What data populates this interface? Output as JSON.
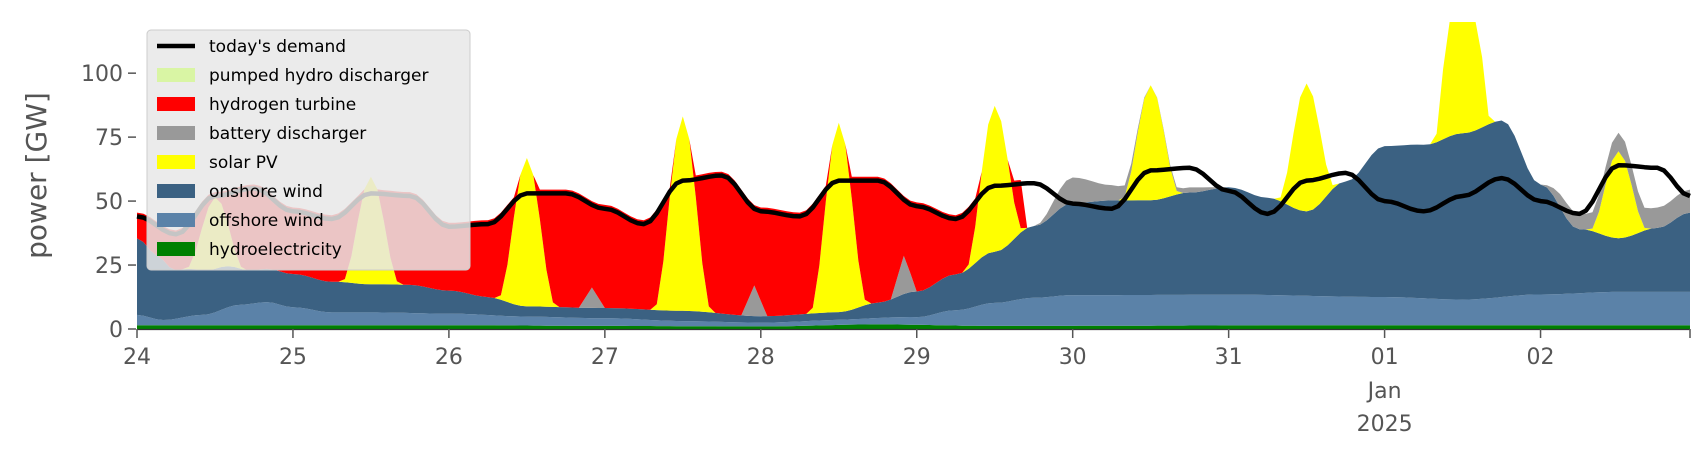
{
  "chart_data": {
    "type": "area",
    "ylabel": "power [GW]",
    "xlabel": "",
    "title": "",
    "ylim": [
      0,
      120
    ],
    "xlim": [
      "2024-12-24T00:00",
      "2025-01-02T23:00"
    ],
    "grid": false,
    "legend_position": "top-left",
    "y_ticks": [
      0,
      25,
      50,
      75,
      100
    ],
    "x_ticks": [
      {
        "date": "2024-12-24",
        "label": "24"
      },
      {
        "date": "2024-12-25",
        "label": "25"
      },
      {
        "date": "2024-12-26",
        "label": "26"
      },
      {
        "date": "2024-12-27",
        "label": "27"
      },
      {
        "date": "2024-12-28",
        "label": "28"
      },
      {
        "date": "2024-12-29",
        "label": "29"
      },
      {
        "date": "2024-12-30",
        "label": "30"
      },
      {
        "date": "2024-12-31",
        "label": "31"
      },
      {
        "date": "2025-01-01",
        "label": "01",
        "sub": [
          "Jan",
          "2025"
        ]
      },
      {
        "date": "2025-01-02",
        "label": "02"
      }
    ],
    "legend": [
      {
        "name": "today's demand",
        "color": "#000000",
        "kind": "line"
      },
      {
        "name": "pumped hydro discharger",
        "color": "#d9f5a4",
        "kind": "patch"
      },
      {
        "name": "hydrogen turbine",
        "color": "#ff0000",
        "kind": "patch"
      },
      {
        "name": "battery discharger",
        "color": "#999999",
        "kind": "patch"
      },
      {
        "name": "solar PV",
        "color": "#ffff00",
        "kind": "patch"
      },
      {
        "name": "onshore wind",
        "color": "#3b6182",
        "kind": "patch"
      },
      {
        "name": "offshore wind",
        "color": "#5b82a8",
        "kind": "patch"
      },
      {
        "name": "hydroelectricity",
        "color": "#008000",
        "kind": "patch"
      }
    ],
    "stack_order": [
      "hydroelectricity",
      "offshore wind",
      "onshore wind",
      "solar PV",
      "battery discharger",
      "hydrogen turbine",
      "pumped hydro discharger"
    ],
    "series": {
      "hydroelectricity": {
        "color": "#008000",
        "points": [
          [
            "2024-12-24T00:00",
            1.5
          ],
          [
            "2024-12-26T00:00",
            1.5
          ],
          [
            "2024-12-27T00:00",
            1.2
          ],
          [
            "2024-12-28T00:00",
            1.0
          ],
          [
            "2024-12-28T18:00",
            1.8
          ],
          [
            "2024-12-29T12:00",
            1.2
          ],
          [
            "2025-01-01T00:00",
            1.5
          ],
          [
            "2025-01-02T23:00",
            1.5
          ]
        ]
      },
      "offshore wind": {
        "color": "#5b82a8",
        "points": [
          [
            "2024-12-24T00:00",
            4
          ],
          [
            "2024-12-24T04:00",
            2
          ],
          [
            "2024-12-24T10:00",
            4
          ],
          [
            "2024-12-24T16:00",
            8
          ],
          [
            "2024-12-24T20:00",
            9
          ],
          [
            "2024-12-25T00:00",
            7
          ],
          [
            "2024-12-25T06:00",
            5
          ],
          [
            "2024-12-25T12:00",
            5
          ],
          [
            "2024-12-26T00:00",
            4.5
          ],
          [
            "2024-12-26T12:00",
            3.5
          ],
          [
            "2024-12-27T00:00",
            3
          ],
          [
            "2024-12-27T12:00",
            2
          ],
          [
            "2024-12-28T00:00",
            1.5
          ],
          [
            "2024-12-28T12:00",
            2
          ],
          [
            "2024-12-29T00:00",
            3
          ],
          [
            "2024-12-29T06:00",
            6
          ],
          [
            "2024-12-29T12:00",
            9
          ],
          [
            "2024-12-29T18:00",
            11
          ],
          [
            "2024-12-30T00:00",
            12
          ],
          [
            "2024-12-31T00:00",
            12
          ],
          [
            "2025-01-01T00:00",
            11
          ],
          [
            "2025-01-01T12:00",
            10
          ],
          [
            "2025-01-02T00:00",
            12
          ],
          [
            "2025-01-02T12:00",
            13
          ],
          [
            "2025-01-02T23:00",
            13
          ]
        ]
      },
      "onshore wind": {
        "color": "#3b6182",
        "points": [
          [
            "2024-12-24T00:00",
            30
          ],
          [
            "2024-12-24T03:00",
            25
          ],
          [
            "2024-12-24T06:00",
            19
          ],
          [
            "2024-12-24T12:00",
            17
          ],
          [
            "2024-12-24T18:00",
            13
          ],
          [
            "2024-12-25T00:00",
            13
          ],
          [
            "2024-12-25T06:00",
            12
          ],
          [
            "2024-12-25T12:00",
            11
          ],
          [
            "2024-12-25T18:00",
            11
          ],
          [
            "2024-12-26T00:00",
            9
          ],
          [
            "2024-12-26T06:00",
            7
          ],
          [
            "2024-12-26T12:00",
            4
          ],
          [
            "2024-12-27T00:00",
            4
          ],
          [
            "2024-12-27T12:00",
            4
          ],
          [
            "2024-12-28T00:00",
            2.5
          ],
          [
            "2024-12-28T12:00",
            3
          ],
          [
            "2024-12-28T18:00",
            6
          ],
          [
            "2024-12-29T00:00",
            10
          ],
          [
            "2024-12-29T06:00",
            14
          ],
          [
            "2024-12-29T12:00",
            20
          ],
          [
            "2024-12-29T18:00",
            28
          ],
          [
            "2024-12-30T00:00",
            36
          ],
          [
            "2024-12-30T06:00",
            37
          ],
          [
            "2024-12-30T12:00",
            37
          ],
          [
            "2024-12-30T18:00",
            40
          ],
          [
            "2024-12-31T00:00",
            42
          ],
          [
            "2024-12-31T06:00",
            38
          ],
          [
            "2024-12-31T12:00",
            33
          ],
          [
            "2024-12-31T18:00",
            45
          ],
          [
            "2025-01-01T00:00",
            59
          ],
          [
            "2025-01-01T06:00",
            60
          ],
          [
            "2025-01-01T12:00",
            65
          ],
          [
            "2025-01-01T18:00",
            69
          ],
          [
            "2025-01-02T00:00",
            43
          ],
          [
            "2025-01-02T06:00",
            25
          ],
          [
            "2025-01-02T12:00",
            21
          ],
          [
            "2025-01-02T18:00",
            25
          ],
          [
            "2025-01-02T23:00",
            31
          ]
        ]
      },
      "solar PV": {
        "color": "#ffff00",
        "peaks": [
          [
            "2024-12-24T12:00",
            28
          ],
          [
            "2024-12-25T12:00",
            42
          ],
          [
            "2024-12-26T12:00",
            58
          ],
          [
            "2024-12-27T12:00",
            76
          ],
          [
            "2024-12-28T12:00",
            74
          ],
          [
            "2024-12-29T12:00",
            57
          ],
          [
            "2024-12-30T12:00",
            45
          ],
          [
            "2024-12-31T12:00",
            50
          ],
          [
            "2025-01-01T12:00",
            110
          ],
          [
            "2025-01-02T12:00",
            34
          ]
        ]
      },
      "battery discharger": {
        "color": "#999999",
        "points": [
          [
            "2024-12-24T00:00",
            0
          ],
          [
            "2024-12-26T20:00",
            0
          ],
          [
            "2024-12-26T22:00",
            8
          ],
          [
            "2024-12-27T00:00",
            0
          ],
          [
            "2024-12-27T21:00",
            0
          ],
          [
            "2024-12-27T23:00",
            12
          ],
          [
            "2024-12-28T01:00",
            0
          ],
          [
            "2024-12-28T20:00",
            0
          ],
          [
            "2024-12-28T22:00",
            15
          ],
          [
            "2024-12-29T00:00",
            0
          ],
          [
            "2024-12-29T18:00",
            0
          ],
          [
            "2024-12-30T00:00",
            10
          ],
          [
            "2024-12-30T06:00",
            6
          ],
          [
            "2024-12-30T12:00",
            0
          ],
          [
            "2024-12-30T18:00",
            2
          ],
          [
            "2024-12-31T00:00",
            0
          ],
          [
            "2025-01-02T00:00",
            0
          ],
          [
            "2025-01-02T04:00",
            6
          ],
          [
            "2025-01-02T18:00",
            8
          ],
          [
            "2025-01-02T23:00",
            9
          ]
        ]
      },
      "hydrogen turbine": {
        "color": "#ff0000",
        "note": "fills the gap between lower stack and demand until 2024-12-29",
        "until": "2024-12-29T16:00"
      },
      "pumped hydro discharger": {
        "color": "#d9f5a4",
        "points": [
          [
            "2024-12-24T00:00",
            0
          ],
          [
            "2025-01-02T23:00",
            0
          ]
        ]
      },
      "today's demand": {
        "color": "#000000",
        "points": [
          [
            "2024-12-24T00:00",
            44
          ],
          [
            "2024-12-24T06:00",
            37
          ],
          [
            "2024-12-24T12:00",
            52
          ],
          [
            "2024-12-24T18:00",
            55
          ],
          [
            "2024-12-25T00:00",
            46
          ],
          [
            "2024-12-25T06:00",
            43
          ],
          [
            "2024-12-25T12:00",
            53
          ],
          [
            "2024-12-25T18:00",
            52
          ],
          [
            "2024-12-26T00:00",
            40
          ],
          [
            "2024-12-26T06:00",
            41
          ],
          [
            "2024-12-26T12:00",
            53
          ],
          [
            "2024-12-26T18:00",
            53
          ],
          [
            "2024-12-27T00:00",
            47
          ],
          [
            "2024-12-27T06:00",
            41
          ],
          [
            "2024-12-27T12:00",
            58
          ],
          [
            "2024-12-27T18:00",
            60
          ],
          [
            "2024-12-28T00:00",
            46
          ],
          [
            "2024-12-28T06:00",
            44
          ],
          [
            "2024-12-28T12:00",
            58
          ],
          [
            "2024-12-28T18:00",
            58
          ],
          [
            "2024-12-29T00:00",
            48
          ],
          [
            "2024-12-29T06:00",
            43
          ],
          [
            "2024-12-29T12:00",
            56
          ],
          [
            "2024-12-29T18:00",
            57
          ],
          [
            "2024-12-30T00:00",
            49
          ],
          [
            "2024-12-30T06:00",
            47
          ],
          [
            "2024-12-30T12:00",
            62
          ],
          [
            "2024-12-30T18:00",
            63
          ],
          [
            "2024-12-31T00:00",
            54
          ],
          [
            "2024-12-31T06:00",
            45
          ],
          [
            "2024-12-31T12:00",
            58
          ],
          [
            "2024-12-31T18:00",
            61
          ],
          [
            "2025-01-01T00:00",
            50
          ],
          [
            "2025-01-01T06:00",
            46
          ],
          [
            "2025-01-01T12:00",
            52
          ],
          [
            "2025-01-01T18:00",
            59
          ],
          [
            "2025-01-02T00:00",
            50
          ],
          [
            "2025-01-02T06:00",
            45
          ],
          [
            "2025-01-02T12:00",
            64
          ],
          [
            "2025-01-02T18:00",
            63
          ],
          [
            "2025-01-02T23:00",
            52
          ]
        ]
      }
    }
  }
}
